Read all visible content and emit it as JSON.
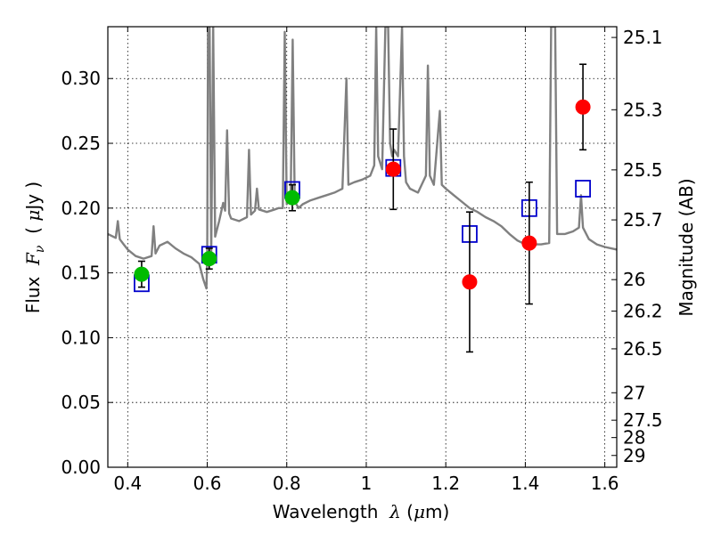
{
  "chart_data": {
    "type": "scatter",
    "xlabel": "Wavelength",
    "xlabel_symbol": "λ",
    "xlabel_unit_open": "(",
    "xlabel_unit_mu": "μ",
    "xlabel_unit_rest": "m)",
    "ylabel": "Flux",
    "ylabel_symbol": "F",
    "ylabel_subscript": "ν",
    "ylabel_unit_open": "(",
    "ylabel_unit_mu": "μ",
    "ylabel_unit_rest": "Jy )",
    "ylabel_right": "Magnitude (AB)",
    "xlim": [
      0.35,
      1.63
    ],
    "ylim": [
      0.0,
      0.34
    ],
    "grid": true,
    "x_ticks": [
      0.4,
      0.6,
      0.8,
      1.0,
      1.2,
      1.4,
      1.6
    ],
    "x_tick_labels": [
      "0.4",
      "0.6",
      "0.8",
      "1",
      "1.2",
      "1.4",
      "1.6"
    ],
    "y_ticks": [
      0.0,
      0.05,
      0.1,
      0.15,
      0.2,
      0.25,
      0.3
    ],
    "y_tick_labels": [
      "0.00",
      "0.05",
      "0.10",
      "0.15",
      "0.20",
      "0.25",
      "0.30"
    ],
    "right_ticks": [
      {
        "label": "25.1",
        "flux": 0.3317
      },
      {
        "label": "25.3",
        "flux": 0.2759
      },
      {
        "label": "25.5",
        "flux": 0.2295
      },
      {
        "label": "25.7",
        "flux": 0.1909
      },
      {
        "label": "26",
        "flux": 0.1448
      },
      {
        "label": "26.2",
        "flux": 0.1205
      },
      {
        "label": "26.5",
        "flux": 0.0914
      },
      {
        "label": "27",
        "flux": 0.0575
      },
      {
        "label": "27.5",
        "flux": 0.0363
      },
      {
        "label": "28",
        "flux": 0.0229
      },
      {
        "label": "29",
        "flux": 0.0091
      }
    ],
    "series": [
      {
        "name": "model-sed",
        "kind": "line",
        "color": "#808080",
        "points": [
          [
            0.35,
            0.18
          ],
          [
            0.37,
            0.177
          ],
          [
            0.375,
            0.19
          ],
          [
            0.38,
            0.176
          ],
          [
            0.39,
            0.172
          ],
          [
            0.4,
            0.168
          ],
          [
            0.42,
            0.163
          ],
          [
            0.44,
            0.161
          ],
          [
            0.46,
            0.163
          ],
          [
            0.465,
            0.186
          ],
          [
            0.47,
            0.165
          ],
          [
            0.48,
            0.171
          ],
          [
            0.5,
            0.174
          ],
          [
            0.52,
            0.169
          ],
          [
            0.54,
            0.165
          ],
          [
            0.56,
            0.162
          ],
          [
            0.58,
            0.157
          ],
          [
            0.59,
            0.145
          ],
          [
            0.598,
            0.138
          ],
          [
            0.6,
            0.16
          ],
          [
            0.602,
            0.34
          ],
          [
            0.606,
            0.34
          ],
          [
            0.61,
            0.163
          ],
          [
            0.615,
            0.34
          ],
          [
            0.62,
            0.178
          ],
          [
            0.63,
            0.19
          ],
          [
            0.64,
            0.204
          ],
          [
            0.645,
            0.198
          ],
          [
            0.65,
            0.26
          ],
          [
            0.655,
            0.196
          ],
          [
            0.66,
            0.192
          ],
          [
            0.68,
            0.19
          ],
          [
            0.7,
            0.193
          ],
          [
            0.705,
            0.245
          ],
          [
            0.71,
            0.195
          ],
          [
            0.72,
            0.198
          ],
          [
            0.725,
            0.215
          ],
          [
            0.73,
            0.199
          ],
          [
            0.75,
            0.197
          ],
          [
            0.77,
            0.199
          ],
          [
            0.78,
            0.2
          ],
          [
            0.79,
            0.2
          ],
          [
            0.795,
            0.336
          ],
          [
            0.8,
            0.203
          ],
          [
            0.81,
            0.21
          ],
          [
            0.815,
            0.33
          ],
          [
            0.82,
            0.205
          ],
          [
            0.83,
            0.2
          ],
          [
            0.84,
            0.203
          ],
          [
            0.86,
            0.206
          ],
          [
            0.88,
            0.208
          ],
          [
            0.9,
            0.21
          ],
          [
            0.92,
            0.212
          ],
          [
            0.94,
            0.215
          ],
          [
            0.95,
            0.3
          ],
          [
            0.955,
            0.218
          ],
          [
            0.97,
            0.22
          ],
          [
            0.99,
            0.222
          ],
          [
            1.01,
            0.225
          ],
          [
            1.02,
            0.233
          ],
          [
            1.025,
            0.34
          ],
          [
            1.03,
            0.24
          ],
          [
            1.04,
            0.23
          ],
          [
            1.048,
            0.34
          ],
          [
            1.055,
            0.34
          ],
          [
            1.06,
            0.25
          ],
          [
            1.065,
            0.24
          ],
          [
            1.07,
            0.245
          ],
          [
            1.08,
            0.24
          ],
          [
            1.09,
            0.34
          ],
          [
            1.095,
            0.24
          ],
          [
            1.1,
            0.22
          ],
          [
            1.11,
            0.215
          ],
          [
            1.13,
            0.212
          ],
          [
            1.15,
            0.225
          ],
          [
            1.155,
            0.31
          ],
          [
            1.16,
            0.225
          ],
          [
            1.17,
            0.218
          ],
          [
            1.185,
            0.275
          ],
          [
            1.19,
            0.218
          ],
          [
            1.2,
            0.215
          ],
          [
            1.22,
            0.21
          ],
          [
            1.24,
            0.205
          ],
          [
            1.26,
            0.2
          ],
          [
            1.28,
            0.197
          ],
          [
            1.3,
            0.193
          ],
          [
            1.32,
            0.19
          ],
          [
            1.34,
            0.186
          ],
          [
            1.36,
            0.18
          ],
          [
            1.38,
            0.175
          ],
          [
            1.4,
            0.172
          ],
          [
            1.42,
            0.172
          ],
          [
            1.44,
            0.172
          ],
          [
            1.46,
            0.173
          ],
          [
            1.465,
            0.34
          ],
          [
            1.475,
            0.34
          ],
          [
            1.48,
            0.18
          ],
          [
            1.5,
            0.18
          ],
          [
            1.52,
            0.182
          ],
          [
            1.535,
            0.185
          ],
          [
            1.54,
            0.21
          ],
          [
            1.545,
            0.185
          ],
          [
            1.56,
            0.176
          ],
          [
            1.58,
            0.172
          ],
          [
            1.6,
            0.17
          ],
          [
            1.63,
            0.168
          ]
        ]
      },
      {
        "name": "model-photometry",
        "kind": "open-square",
        "color": "#0000cc",
        "points": [
          [
            0.435,
            0.142
          ],
          [
            0.605,
            0.164
          ],
          [
            0.814,
            0.214
          ],
          [
            1.068,
            0.231
          ],
          [
            1.26,
            0.18
          ],
          [
            1.41,
            0.2
          ],
          [
            1.545,
            0.215
          ]
        ]
      },
      {
        "name": "observed-green",
        "kind": "filled-circle",
        "color": "#00bb00",
        "points": [
          [
            0.435,
            0.149
          ],
          [
            0.605,
            0.161
          ],
          [
            0.814,
            0.208
          ]
        ],
        "errors": [
          0.01,
          0.008,
          0.01
        ]
      },
      {
        "name": "observed-red",
        "kind": "filled-circle",
        "color": "#ff0000",
        "points": [
          [
            1.068,
            0.23
          ],
          [
            1.26,
            0.143
          ],
          [
            1.41,
            0.173
          ],
          [
            1.545,
            0.278
          ]
        ],
        "errors": [
          0.031,
          0.054,
          0.047,
          0.033
        ]
      }
    ]
  }
}
